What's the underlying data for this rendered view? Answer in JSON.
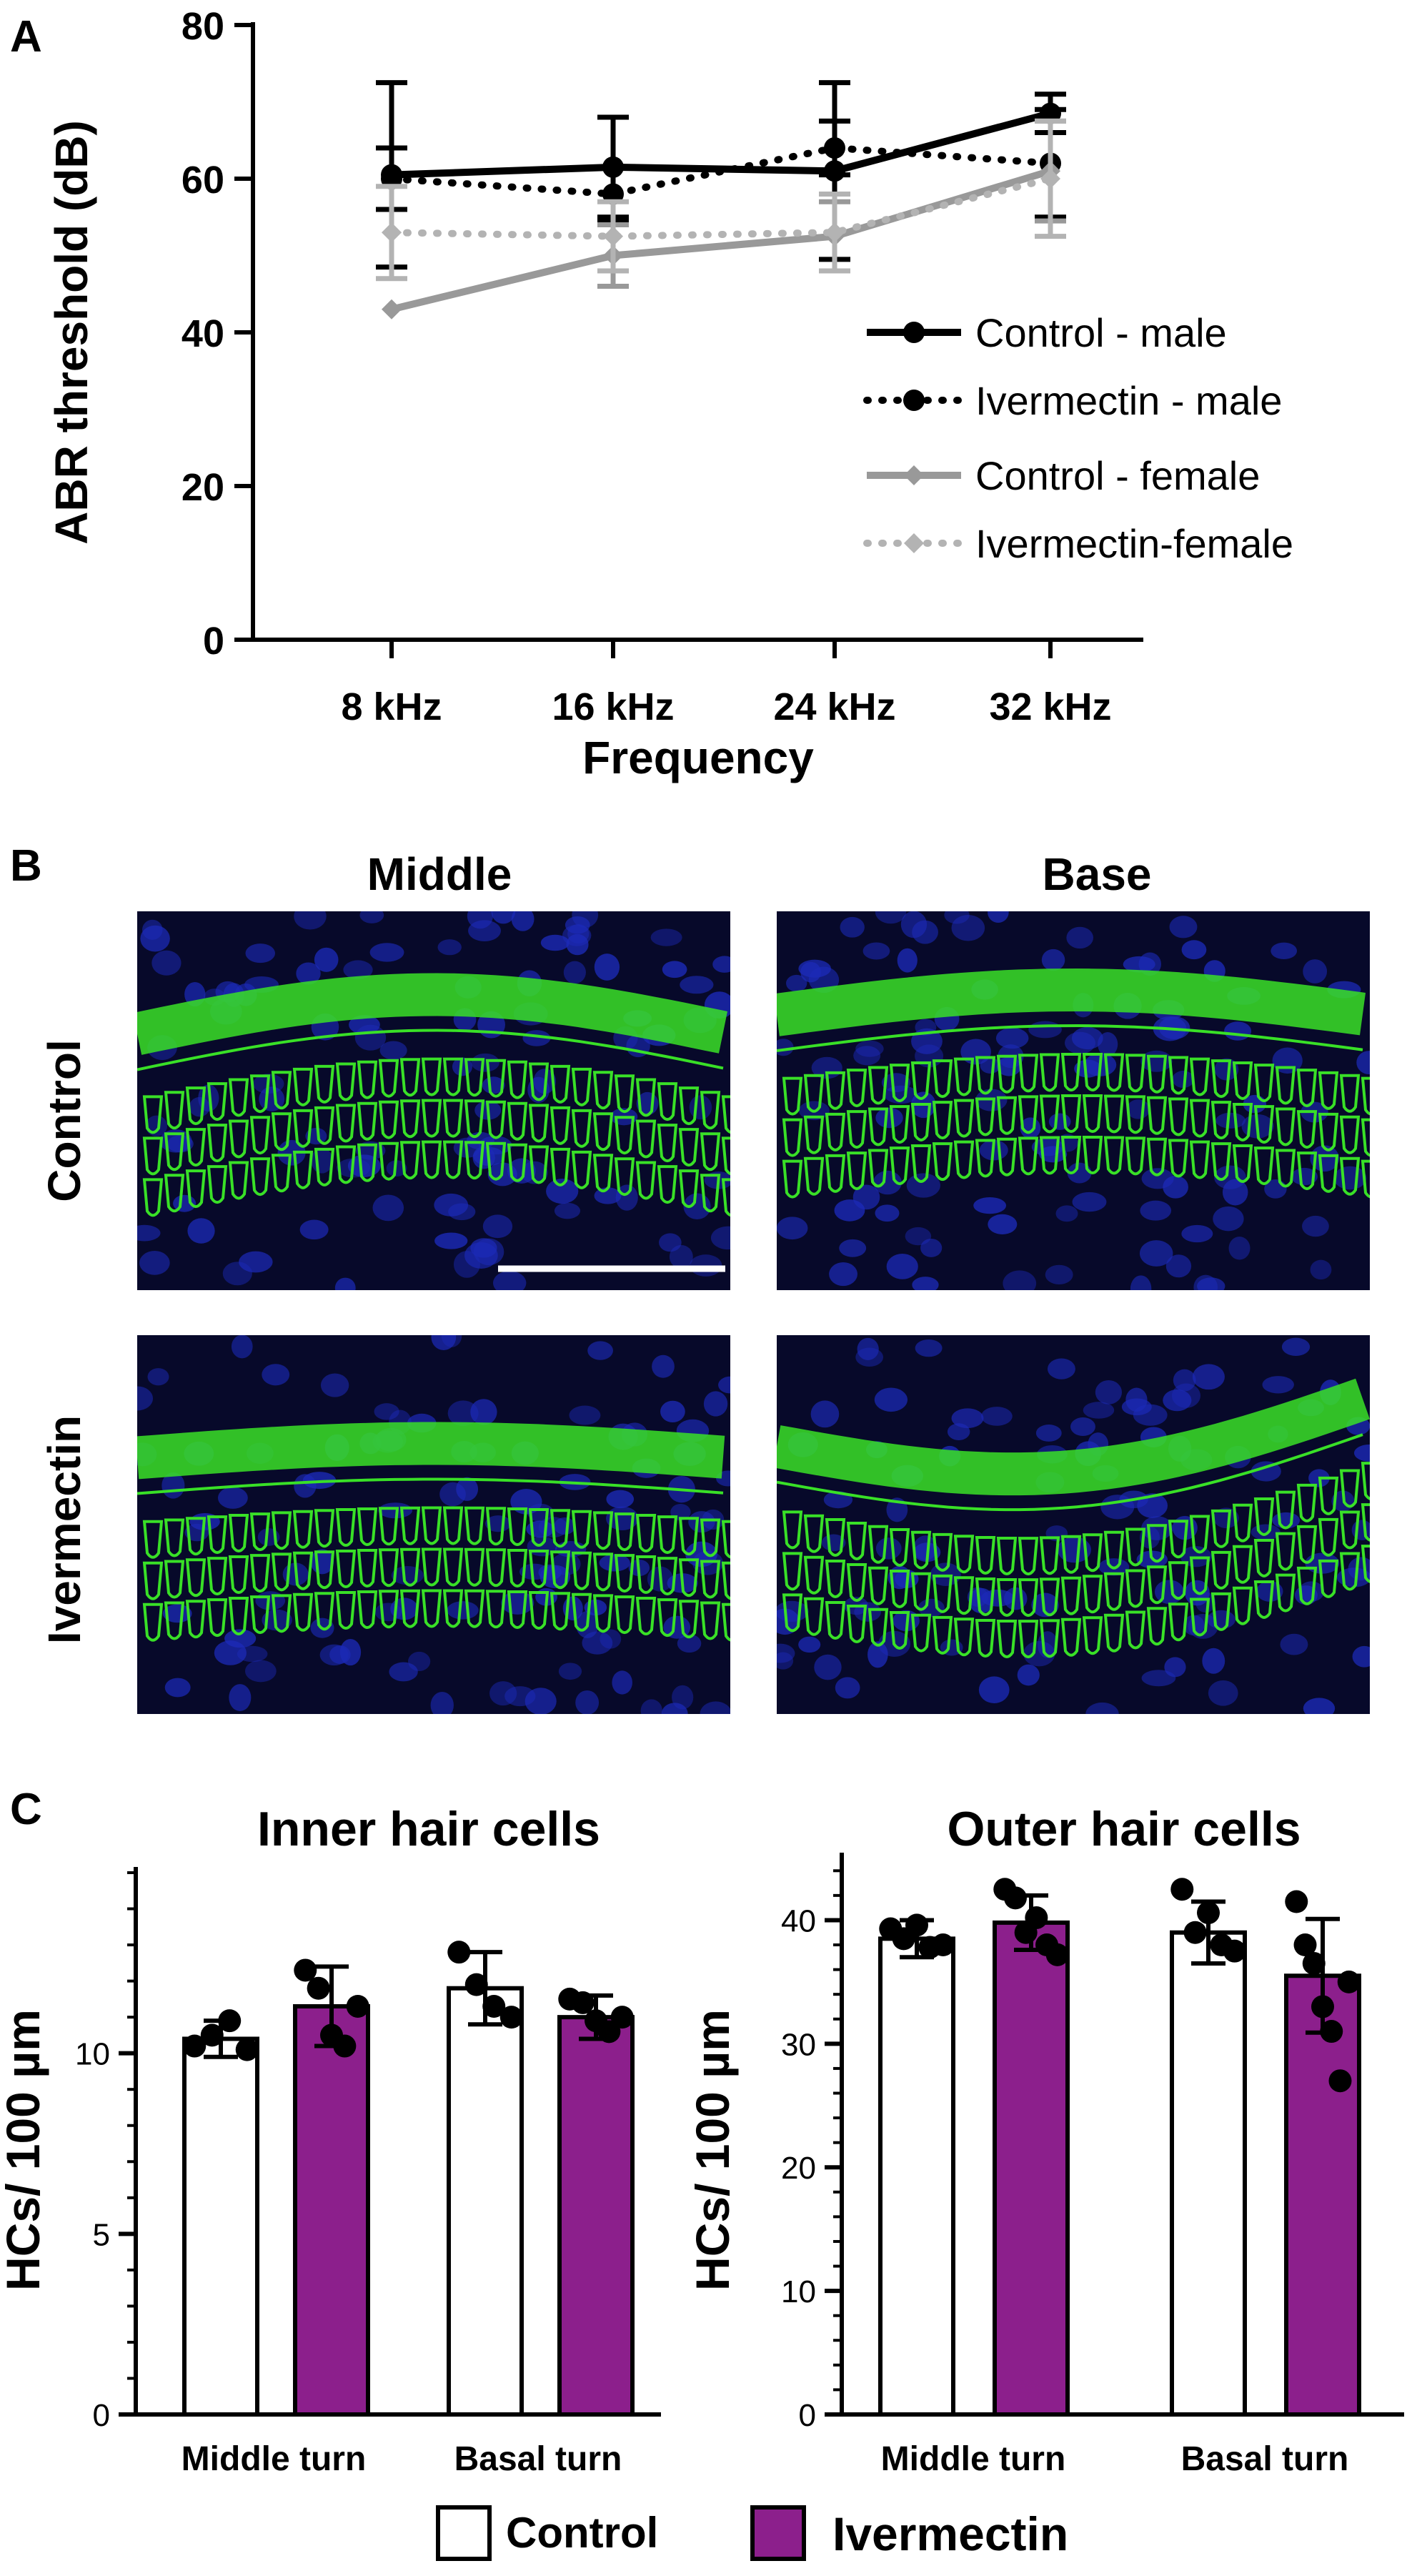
{
  "figure": {
    "panels": [
      {
        "label": "A"
      },
      {
        "label": "B",
        "column_titles": [
          "Middle",
          "Base"
        ],
        "row_titles": [
          "Control",
          "Ivermectin"
        ]
      },
      {
        "label": "C"
      }
    ]
  },
  "colors": {
    "axis": "#000000",
    "control_male": "#000000",
    "ivermectin_male": "#000000",
    "control_female": "#999999",
    "ivermectin_female": "#b3b3b3",
    "control_bar_fill": "#ffffff",
    "ivermectin_bar_fill": "#8c1f8c",
    "micrograph_background": "#07092a",
    "nuclei_stain": "#1c2ab8",
    "hair_cell_stain": "#39e027"
  },
  "chart_data": [
    {
      "panel": "A",
      "type": "line",
      "xlabel": "Frequency",
      "ylabel": "ABR threshold (dB)",
      "categories": [
        "8 kHz",
        "16 kHz",
        "24 kHz",
        "32 kHz"
      ],
      "ylim": [
        0,
        80
      ],
      "yticks": [
        0,
        20,
        40,
        60,
        80
      ],
      "legend_position": "right",
      "grid": false,
      "series": [
        {
          "name": "Control - male",
          "line": "solid",
          "marker": "circle",
          "color": "#000000",
          "values": [
            60.5,
            61.5,
            61,
            68.5
          ],
          "error": [
            12,
            6.5,
            11.5,
            2.5
          ]
        },
        {
          "name": "Ivermectin - male",
          "line": "dotted",
          "marker": "circle",
          "color": "#000000",
          "values": [
            60,
            58,
            64,
            62
          ],
          "error": [
            4,
            3.5,
            3.5,
            7
          ]
        },
        {
          "name": "Control - female",
          "line": "solid",
          "marker": "diamond",
          "color": "#999999",
          "values": [
            43,
            50,
            52.5,
            61
          ],
          "error": [
            0,
            4,
            4.5,
            6.5
          ]
        },
        {
          "name": "Ivermectin-female",
          "line": "dotted",
          "marker": "diamond",
          "color": "#b3b3b3",
          "values": [
            53,
            52.5,
            53,
            60
          ],
          "error": [
            6,
            4.5,
            5,
            7.5
          ]
        }
      ]
    },
    {
      "panel": "C",
      "type": "bar",
      "title": "Inner hair cells",
      "ylabel": "HCs/ 100 µm",
      "categories": [
        "Middle turn",
        "Basal turn"
      ],
      "ylim": [
        0,
        15
      ],
      "yticks": [
        0,
        5,
        10
      ],
      "grid": false,
      "series": [
        {
          "name": "Control",
          "values": [
            10.4,
            11.8
          ],
          "error": [
            0.5,
            1.0
          ],
          "points": [
            [
              10.2,
              10.5,
              10.9,
              10.1
            ],
            [
              12.8,
              11.9,
              11.3,
              11.0
            ]
          ]
        },
        {
          "name": "Ivermectin",
          "values": [
            11.3,
            11.0
          ],
          "error": [
            1.1,
            0.6
          ],
          "points": [
            [
              12.3,
              11.8,
              10.5,
              10.2,
              11.3
            ],
            [
              11.5,
              11.4,
              10.9,
              10.6,
              11.0
            ]
          ]
        }
      ]
    },
    {
      "panel": "C",
      "type": "bar",
      "title": "Outer hair cells",
      "ylabel": "HCs/ 100 µm",
      "categories": [
        "Middle turn",
        "Basal turn"
      ],
      "ylim": [
        0,
        45
      ],
      "yticks": [
        0,
        10,
        20,
        30,
        40
      ],
      "grid": false,
      "series": [
        {
          "name": "Control",
          "values": [
            38.5,
            39.0
          ],
          "error": [
            1.5,
            2.5
          ],
          "points": [
            [
              39.3,
              38.5,
              39.6,
              37.8,
              38.0
            ],
            [
              42.5,
              39.0,
              40.6,
              38.0,
              37.5
            ]
          ]
        },
        {
          "name": "Ivermectin",
          "values": [
            39.8,
            35.5
          ],
          "error": [
            2.2,
            4.6
          ],
          "points": [
            [
              42.5,
              41.8,
              39.0,
              40.2,
              38.0,
              37.2
            ],
            [
              41.5,
              38.0,
              36.5,
              33.0,
              31.0,
              27.0,
              35.0
            ]
          ]
        }
      ]
    }
  ]
}
